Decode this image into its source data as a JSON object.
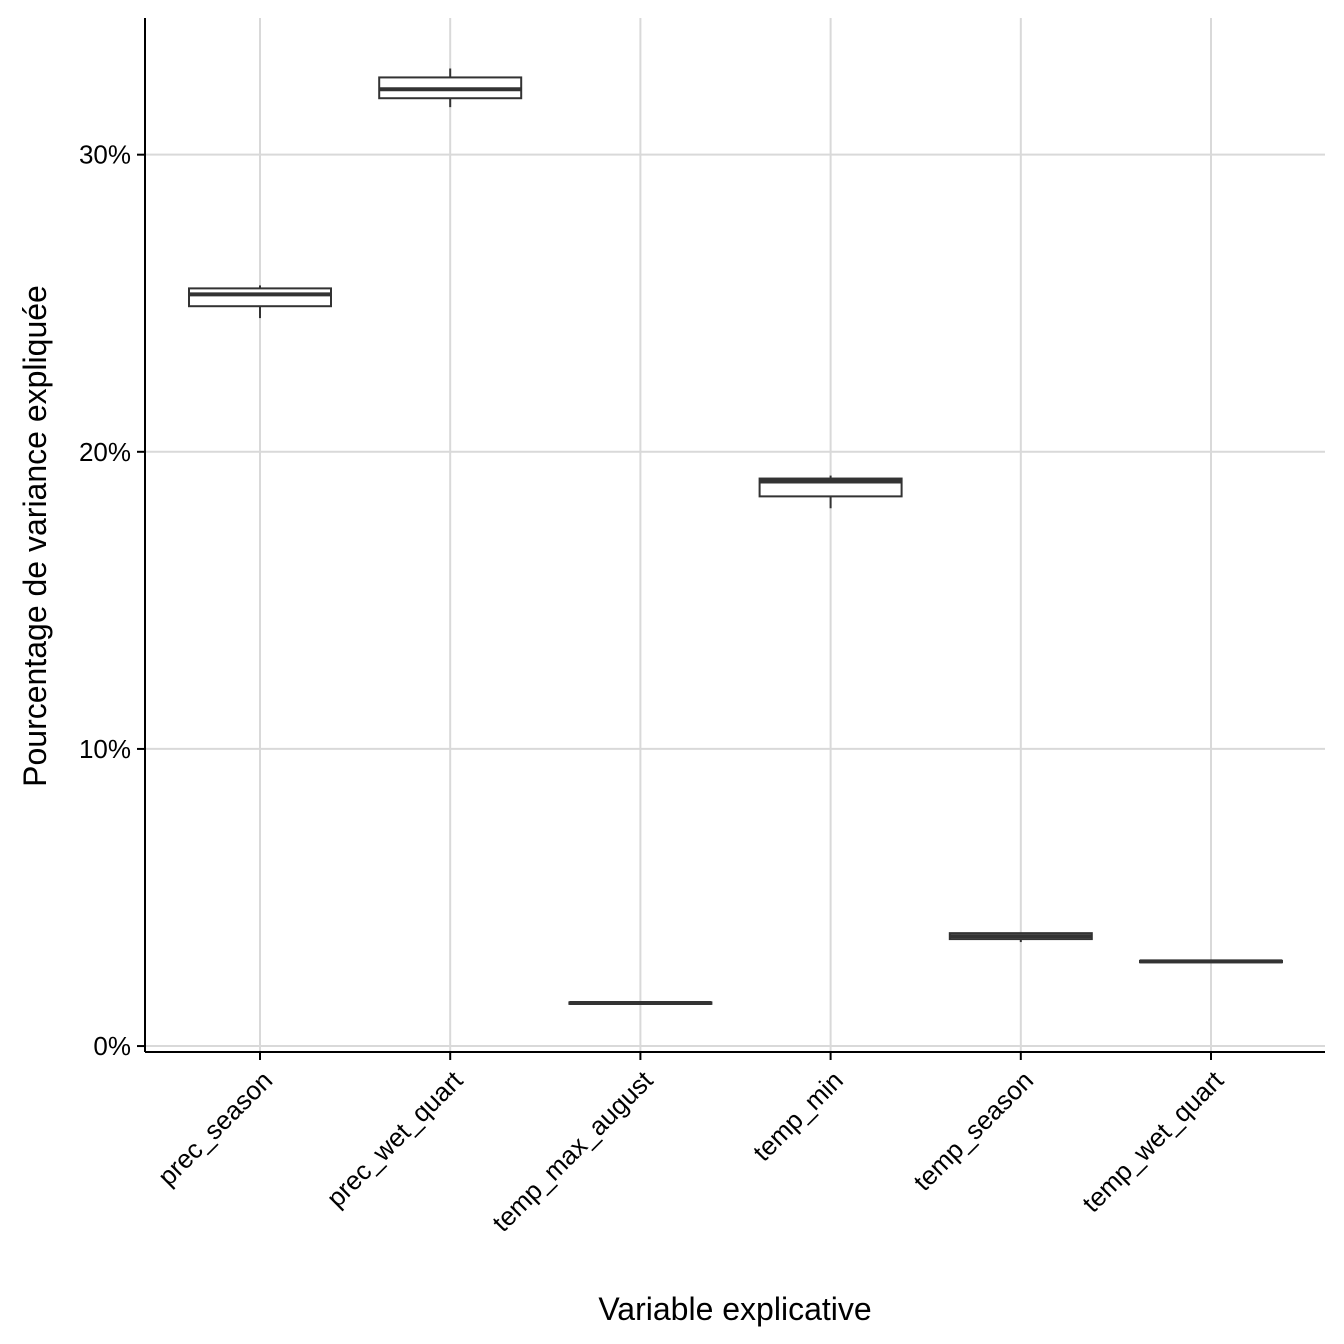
{
  "chart_data": {
    "type": "boxplot",
    "title": "",
    "xlabel": "Variable explicative",
    "ylabel": "Pourcentage de variance expliquée",
    "categories": [
      "prec_season",
      "prec_wet_quart",
      "temp_max_august",
      "temp_min",
      "temp_season",
      "temp_wet_quart"
    ],
    "y_ticks": [
      0,
      10,
      20,
      30
    ],
    "y_tick_labels": [
      "0%",
      "10%",
      "20%",
      "30%"
    ],
    "ylim": [
      -0.2,
      34.6
    ],
    "grid": true,
    "legend": "none",
    "boxes": [
      {
        "category": "prec_season",
        "min": 24.5,
        "q1": 24.9,
        "median": 25.3,
        "q3": 25.5,
        "max": 25.6
      },
      {
        "category": "prec_wet_quart",
        "min": 31.6,
        "q1": 31.9,
        "median": 32.2,
        "q3": 32.6,
        "max": 32.9
      },
      {
        "category": "temp_max_august",
        "min": 1.4,
        "q1": 1.42,
        "median": 1.45,
        "q3": 1.47,
        "max": 1.5
      },
      {
        "category": "temp_min",
        "min": 18.1,
        "q1": 18.5,
        "median": 19.0,
        "q3": 19.1,
        "max": 19.2
      },
      {
        "category": "temp_season",
        "min": 3.5,
        "q1": 3.6,
        "median": 3.7,
        "q3": 3.8,
        "max": 3.82
      },
      {
        "category": "temp_wet_quart",
        "min": 2.8,
        "q1": 2.82,
        "median": 2.85,
        "q3": 2.87,
        "max": 2.9
      }
    ]
  }
}
